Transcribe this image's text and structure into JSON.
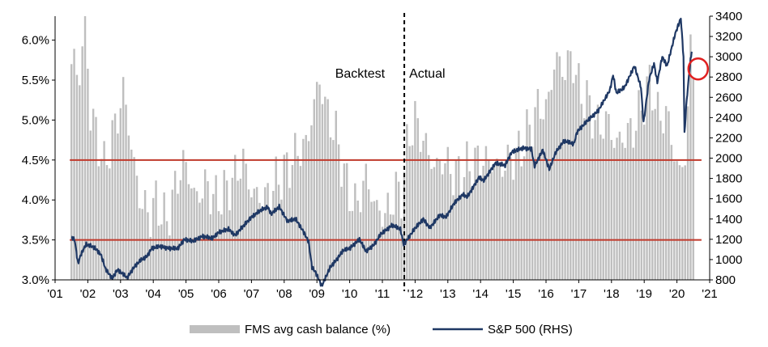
{
  "chart_data": {
    "type": "bar+line",
    "xlim": [
      2001.0,
      2021.0
    ],
    "x_ticks": [
      "'01",
      "'02",
      "'03",
      "'04",
      "'05",
      "'06",
      "'07",
      "'08",
      "'09",
      "'10",
      "'11",
      "'12",
      "'13",
      "'14",
      "'15",
      "'16",
      "'17",
      "'18",
      "'19",
      "'20",
      "'21"
    ],
    "ylim_left": [
      3.0,
      6.3
    ],
    "y_ticks_left": [
      "3.0%",
      "3.5%",
      "4.0%",
      "4.5%",
      "5.0%",
      "5.5%",
      "6.0%"
    ],
    "ylim_right": [
      800,
      3400
    ],
    "y_ticks_right": [
      "800",
      "1000",
      "1200",
      "1400",
      "1600",
      "1800",
      "2000",
      "2200",
      "2400",
      "2600",
      "2800",
      "3000",
      "3200",
      "3400"
    ],
    "reference_lines_left": [
      4.5,
      3.5
    ],
    "divider_x": 2011.67,
    "annotations": {
      "left": "Backtest",
      "right": "Actual"
    },
    "highlight": {
      "x": 2020.45,
      "y_right": 2880
    },
    "series": [
      {
        "name": "FMS avg cash balance (%)",
        "type": "bar",
        "axis": "left",
        "color": "#bfbfbf",
        "anchors": [
          [
            2001.5,
            5.7
          ],
          [
            2001.6,
            5.8
          ],
          [
            2001.7,
            5.4
          ],
          [
            2001.85,
            6.0
          ],
          [
            2001.92,
            6.3
          ],
          [
            2002.1,
            5.0
          ],
          [
            2002.3,
            4.8
          ],
          [
            2002.5,
            4.4
          ],
          [
            2002.75,
            4.8
          ],
          [
            2002.95,
            5.1
          ],
          [
            2003.1,
            5.4
          ],
          [
            2003.35,
            4.6
          ],
          [
            2003.6,
            4.0
          ],
          [
            2003.9,
            3.8
          ],
          [
            2004.1,
            4.0
          ],
          [
            2004.4,
            3.7
          ],
          [
            2004.7,
            4.2
          ],
          [
            2004.95,
            4.5
          ],
          [
            2005.3,
            4.0
          ],
          [
            2005.6,
            4.2
          ],
          [
            2005.9,
            4.0
          ],
          [
            2006.2,
            4.1
          ],
          [
            2006.5,
            4.3
          ],
          [
            2006.75,
            4.5
          ],
          [
            2007.0,
            4.1
          ],
          [
            2007.4,
            4.0
          ],
          [
            2007.7,
            4.2
          ],
          [
            2008.1,
            4.4
          ],
          [
            2008.4,
            4.6
          ],
          [
            2008.7,
            4.7
          ],
          [
            2008.95,
            5.3
          ],
          [
            2009.1,
            5.5
          ],
          [
            2009.3,
            5.1
          ],
          [
            2009.6,
            4.8
          ],
          [
            2009.9,
            4.2
          ],
          [
            2010.2,
            3.9
          ],
          [
            2010.5,
            4.3
          ],
          [
            2010.8,
            3.9
          ],
          [
            2011.1,
            3.8
          ],
          [
            2011.4,
            4.1
          ],
          [
            2011.6,
            4.1
          ],
          [
            2011.8,
            4.8
          ],
          [
            2012.0,
            5.0
          ],
          [
            2012.3,
            4.7
          ],
          [
            2012.6,
            4.4
          ],
          [
            2012.9,
            4.5
          ],
          [
            2013.2,
            4.3
          ],
          [
            2013.6,
            4.4
          ],
          [
            2013.9,
            4.5
          ],
          [
            2014.2,
            4.5
          ],
          [
            2014.6,
            4.4
          ],
          [
            2014.9,
            4.5
          ],
          [
            2015.2,
            4.6
          ],
          [
            2015.5,
            4.9
          ],
          [
            2015.8,
            5.2
          ],
          [
            2016.0,
            5.1
          ],
          [
            2016.3,
            5.8
          ],
          [
            2016.55,
            5.6
          ],
          [
            2016.8,
            5.8
          ],
          [
            2017.0,
            5.4
          ],
          [
            2017.3,
            5.2
          ],
          [
            2017.6,
            4.9
          ],
          [
            2017.9,
            5.0
          ],
          [
            2018.1,
            4.7
          ],
          [
            2018.4,
            4.8
          ],
          [
            2018.7,
            4.9
          ],
          [
            2018.95,
            5.2
          ],
          [
            2019.2,
            5.5
          ],
          [
            2019.45,
            5.0
          ],
          [
            2019.7,
            5.1
          ],
          [
            2019.9,
            4.6
          ],
          [
            2020.1,
            4.3
          ],
          [
            2020.3,
            4.7
          ],
          [
            2020.4,
            5.9
          ],
          [
            2020.5,
            5.7
          ]
        ]
      },
      {
        "name": "S&P 500 (RHS)",
        "type": "line",
        "axis": "right",
        "color": "#1f3864",
        "points": [
          [
            2001.5,
            1220
          ],
          [
            2001.6,
            1190
          ],
          [
            2001.7,
            960
          ],
          [
            2001.8,
            1060
          ],
          [
            2001.95,
            1150
          ],
          [
            2002.2,
            1120
          ],
          [
            2002.4,
            1050
          ],
          [
            2002.55,
            900
          ],
          [
            2002.75,
            815
          ],
          [
            2002.9,
            900
          ],
          [
            2003.1,
            850
          ],
          [
            2003.2,
            820
          ],
          [
            2003.4,
            920
          ],
          [
            2003.6,
            990
          ],
          [
            2003.8,
            1030
          ],
          [
            2003.95,
            1110
          ],
          [
            2004.2,
            1130
          ],
          [
            2004.5,
            1110
          ],
          [
            2004.75,
            1110
          ],
          [
            2004.95,
            1200
          ],
          [
            2005.2,
            1180
          ],
          [
            2005.5,
            1230
          ],
          [
            2005.8,
            1210
          ],
          [
            2006.0,
            1270
          ],
          [
            2006.3,
            1300
          ],
          [
            2006.5,
            1240
          ],
          [
            2006.75,
            1330
          ],
          [
            2007.0,
            1420
          ],
          [
            2007.3,
            1490
          ],
          [
            2007.5,
            1520
          ],
          [
            2007.6,
            1450
          ],
          [
            2007.85,
            1520
          ],
          [
            2008.1,
            1380
          ],
          [
            2008.35,
            1400
          ],
          [
            2008.6,
            1270
          ],
          [
            2008.75,
            1170
          ],
          [
            2008.85,
            920
          ],
          [
            2008.95,
            880
          ],
          [
            2009.15,
            740
          ],
          [
            2009.4,
            920
          ],
          [
            2009.6,
            1000
          ],
          [
            2009.8,
            1090
          ],
          [
            2010.0,
            1110
          ],
          [
            2010.3,
            1200
          ],
          [
            2010.5,
            1080
          ],
          [
            2010.75,
            1150
          ],
          [
            2010.95,
            1250
          ],
          [
            2011.3,
            1340
          ],
          [
            2011.55,
            1300
          ],
          [
            2011.65,
            1150
          ],
          [
            2011.85,
            1240
          ],
          [
            2012.0,
            1310
          ],
          [
            2012.25,
            1400
          ],
          [
            2012.45,
            1310
          ],
          [
            2012.75,
            1440
          ],
          [
            2012.95,
            1420
          ],
          [
            2013.2,
            1560
          ],
          [
            2013.45,
            1640
          ],
          [
            2013.6,
            1620
          ],
          [
            2013.95,
            1810
          ],
          [
            2014.1,
            1780
          ],
          [
            2014.45,
            1950
          ],
          [
            2014.75,
            1930
          ],
          [
            2014.95,
            2060
          ],
          [
            2015.3,
            2100
          ],
          [
            2015.55,
            2090
          ],
          [
            2015.65,
            1920
          ],
          [
            2015.9,
            2080
          ],
          [
            2016.1,
            1890
          ],
          [
            2016.3,
            2060
          ],
          [
            2016.55,
            2170
          ],
          [
            2016.85,
            2140
          ],
          [
            2016.95,
            2260
          ],
          [
            2017.3,
            2380
          ],
          [
            2017.6,
            2470
          ],
          [
            2017.95,
            2670
          ],
          [
            2018.05,
            2820
          ],
          [
            2018.15,
            2640
          ],
          [
            2018.4,
            2700
          ],
          [
            2018.7,
            2910
          ],
          [
            2018.9,
            2700
          ],
          [
            2018.98,
            2350
          ],
          [
            2019.15,
            2780
          ],
          [
            2019.3,
            2930
          ],
          [
            2019.4,
            2750
          ],
          [
            2019.55,
            3000
          ],
          [
            2019.7,
            2910
          ],
          [
            2019.95,
            3230
          ],
          [
            2020.12,
            3380
          ],
          [
            2020.2,
            3000
          ],
          [
            2020.23,
            2240
          ],
          [
            2020.3,
            2580
          ],
          [
            2020.4,
            2920
          ],
          [
            2020.45,
            3050
          ]
        ]
      }
    ]
  }
}
